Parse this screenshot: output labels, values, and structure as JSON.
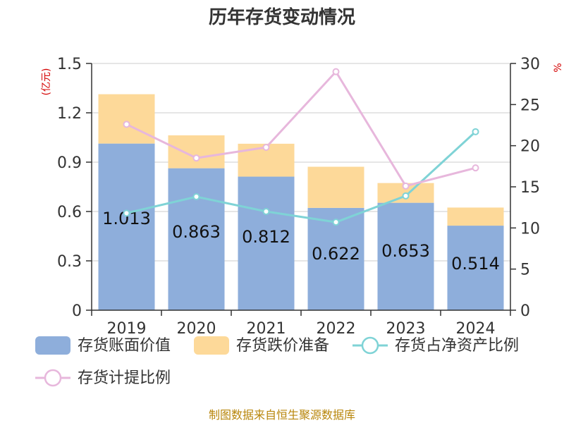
{
  "chart_data": {
    "type": "bar",
    "title": "历年存货变动情况",
    "categories": [
      "2019",
      "2020",
      "2021",
      "2022",
      "2023",
      "2024"
    ],
    "left_axis": {
      "unit_label": "(亿元)",
      "ticks": [
        "0",
        "0.3",
        "0.6",
        "0.9",
        "1.2",
        "1.5"
      ],
      "ylim": [
        0,
        1.5
      ]
    },
    "right_axis": {
      "unit_label": "%",
      "ticks": [
        "0",
        "5",
        "10",
        "15",
        "20",
        "25",
        "30"
      ],
      "ylim": [
        0,
        30
      ]
    },
    "stacked_series": [
      {
        "name": "存货账面价值",
        "color": "#8eaedb",
        "values": [
          1.013,
          0.863,
          0.812,
          0.622,
          0.653,
          0.514
        ],
        "labels": [
          "1.013",
          "0.863",
          "0.812",
          "0.622",
          "0.653",
          "0.514"
        ]
      },
      {
        "name": "存货跌价准备",
        "color": "#fdd999",
        "values": [
          0.3,
          0.2,
          0.2,
          0.25,
          0.12,
          0.11
        ]
      }
    ],
    "line_series": [
      {
        "name": "存货占净资产比例",
        "color": "#7fd3d6",
        "axis": "right",
        "values": [
          11.8,
          13.8,
          12.0,
          10.7,
          13.9,
          21.7
        ]
      },
      {
        "name": "存货计提比例",
        "color": "#e7b7dc",
        "axis": "right",
        "values": [
          22.6,
          18.5,
          19.8,
          29.0,
          15.1,
          17.3
        ]
      }
    ],
    "grid": true,
    "legend_position": "bottom"
  },
  "source": "制图数据来自恒生聚源数据库"
}
